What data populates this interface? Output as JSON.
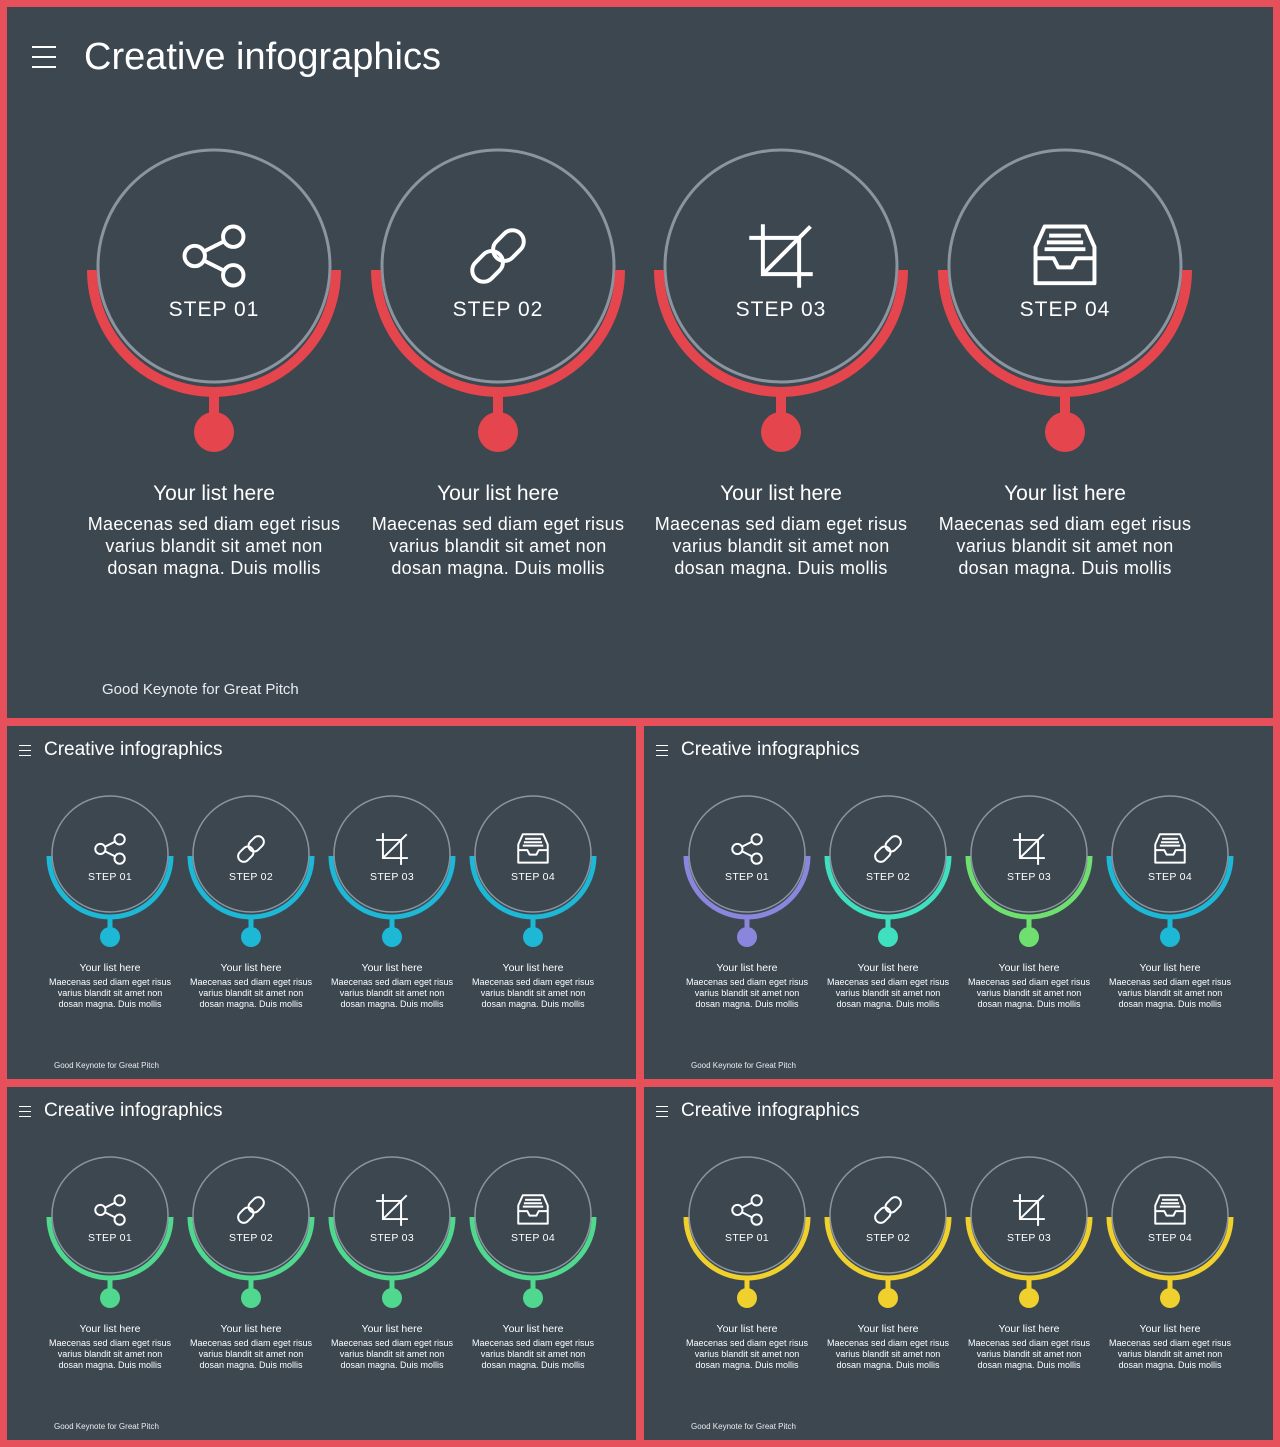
{
  "colors": {
    "background": "#3d4750",
    "frame": "#e5505a",
    "ring": "#8a95a0"
  },
  "slides": [
    {
      "id": "main",
      "title": "Creative infographics",
      "footer": "Good Keynote for Great Pitch",
      "steps": [
        {
          "label": "STEP 01",
          "icon": "share-icon",
          "color": "#e5464e",
          "title": "Your list here",
          "desc": "Maecenas sed diam eget risus varius blandit sit amet non dosan magna. Duis mollis"
        },
        {
          "label": "STEP 02",
          "icon": "link-icon",
          "color": "#e5464e",
          "title": "Your list here",
          "desc": "Maecenas sed diam eget risus varius blandit sit amet non dosan magna. Duis mollis"
        },
        {
          "label": "STEP 03",
          "icon": "crop-icon",
          "color": "#e5464e",
          "title": "Your list here",
          "desc": "Maecenas sed diam eget risus varius blandit sit amet non dosan magna. Duis mollis"
        },
        {
          "label": "STEP 04",
          "icon": "inbox-icon",
          "color": "#e5464e",
          "title": "Your list here",
          "desc": "Maecenas sed diam eget risus varius blandit sit amet non dosan magna. Duis mollis"
        }
      ]
    },
    {
      "id": "v1",
      "title": "Creative infographics",
      "footer": "Good Keynote for Great Pitch",
      "steps": [
        {
          "label": "STEP 01",
          "icon": "share-icon",
          "color": "#1cb8d6",
          "title": "Your list here",
          "desc": "Maecenas sed diam eget risus varius blandit sit amet non dosan magna. Duis mollis"
        },
        {
          "label": "STEP 02",
          "icon": "link-icon",
          "color": "#1cb8d6",
          "title": "Your list here",
          "desc": "Maecenas sed diam eget risus varius blandit sit amet non dosan magna. Duis mollis"
        },
        {
          "label": "STEP 03",
          "icon": "crop-icon",
          "color": "#1cb8d6",
          "title": "Your list here",
          "desc": "Maecenas sed diam eget risus varius blandit sit amet non dosan magna. Duis mollis"
        },
        {
          "label": "STEP 04",
          "icon": "inbox-icon",
          "color": "#1cb8d6",
          "title": "Your list here",
          "desc": "Maecenas sed diam eget risus varius blandit sit amet non dosan magna. Duis mollis"
        }
      ]
    },
    {
      "id": "v2",
      "title": "Creative infographics",
      "footer": "Good Keynote for Great Pitch",
      "steps": [
        {
          "label": "STEP 01",
          "icon": "share-icon",
          "color": "#8b86dd",
          "title": "Your list here",
          "desc": "Maecenas sed diam eget risus varius blandit sit amet non dosan magna. Duis mollis"
        },
        {
          "label": "STEP 02",
          "icon": "link-icon",
          "color": "#3fe0c0",
          "title": "Your list here",
          "desc": "Maecenas sed diam eget risus varius blandit sit amet non dosan magna. Duis mollis"
        },
        {
          "label": "STEP 03",
          "icon": "crop-icon",
          "color": "#6fe070",
          "title": "Your list here",
          "desc": "Maecenas sed diam eget risus varius blandit sit amet non dosan magna. Duis mollis"
        },
        {
          "label": "STEP 04",
          "icon": "inbox-icon",
          "color": "#1cb8d6",
          "title": "Your list here",
          "desc": "Maecenas sed diam eget risus varius blandit sit amet non dosan magna. Duis mollis"
        }
      ]
    },
    {
      "id": "v3",
      "title": "Creative infographics",
      "footer": "Good Keynote for Great Pitch",
      "steps": [
        {
          "label": "STEP 01",
          "icon": "share-icon",
          "color": "#4fd88e",
          "title": "Your list here",
          "desc": "Maecenas sed diam eget risus varius blandit sit amet non dosan magna. Duis mollis"
        },
        {
          "label": "STEP 02",
          "icon": "link-icon",
          "color": "#4fd88e",
          "title": "Your list here",
          "desc": "Maecenas sed diam eget risus varius blandit sit amet non dosan magna. Duis mollis"
        },
        {
          "label": "STEP 03",
          "icon": "crop-icon",
          "color": "#4fd88e",
          "title": "Your list here",
          "desc": "Maecenas sed diam eget risus varius blandit sit amet non dosan magna. Duis mollis"
        },
        {
          "label": "STEP 04",
          "icon": "inbox-icon",
          "color": "#4fd88e",
          "title": "Your list here",
          "desc": "Maecenas sed diam eget risus varius blandit sit amet non dosan magna. Duis mollis"
        }
      ]
    },
    {
      "id": "v4",
      "title": "Creative infographics",
      "footer": "Good Keynote for Great Pitch",
      "steps": [
        {
          "label": "STEP 01",
          "icon": "share-icon",
          "color": "#f0d02c",
          "title": "Your list here",
          "desc": "Maecenas sed diam eget risus varius blandit sit amet non dosan magna. Duis mollis"
        },
        {
          "label": "STEP 02",
          "icon": "link-icon",
          "color": "#f0d02c",
          "title": "Your list here",
          "desc": "Maecenas sed diam eget risus varius blandit sit amet non dosan magna. Duis mollis"
        },
        {
          "label": "STEP 03",
          "icon": "crop-icon",
          "color": "#f0d02c",
          "title": "Your list here",
          "desc": "Maecenas sed diam eget risus varius blandit sit amet non dosan magna. Duis mollis"
        },
        {
          "label": "STEP 04",
          "icon": "inbox-icon",
          "color": "#f0d02c",
          "title": "Your list here",
          "desc": "Maecenas sed diam eget risus varius blandit sit amet non dosan magna. Duis mollis"
        }
      ]
    }
  ]
}
